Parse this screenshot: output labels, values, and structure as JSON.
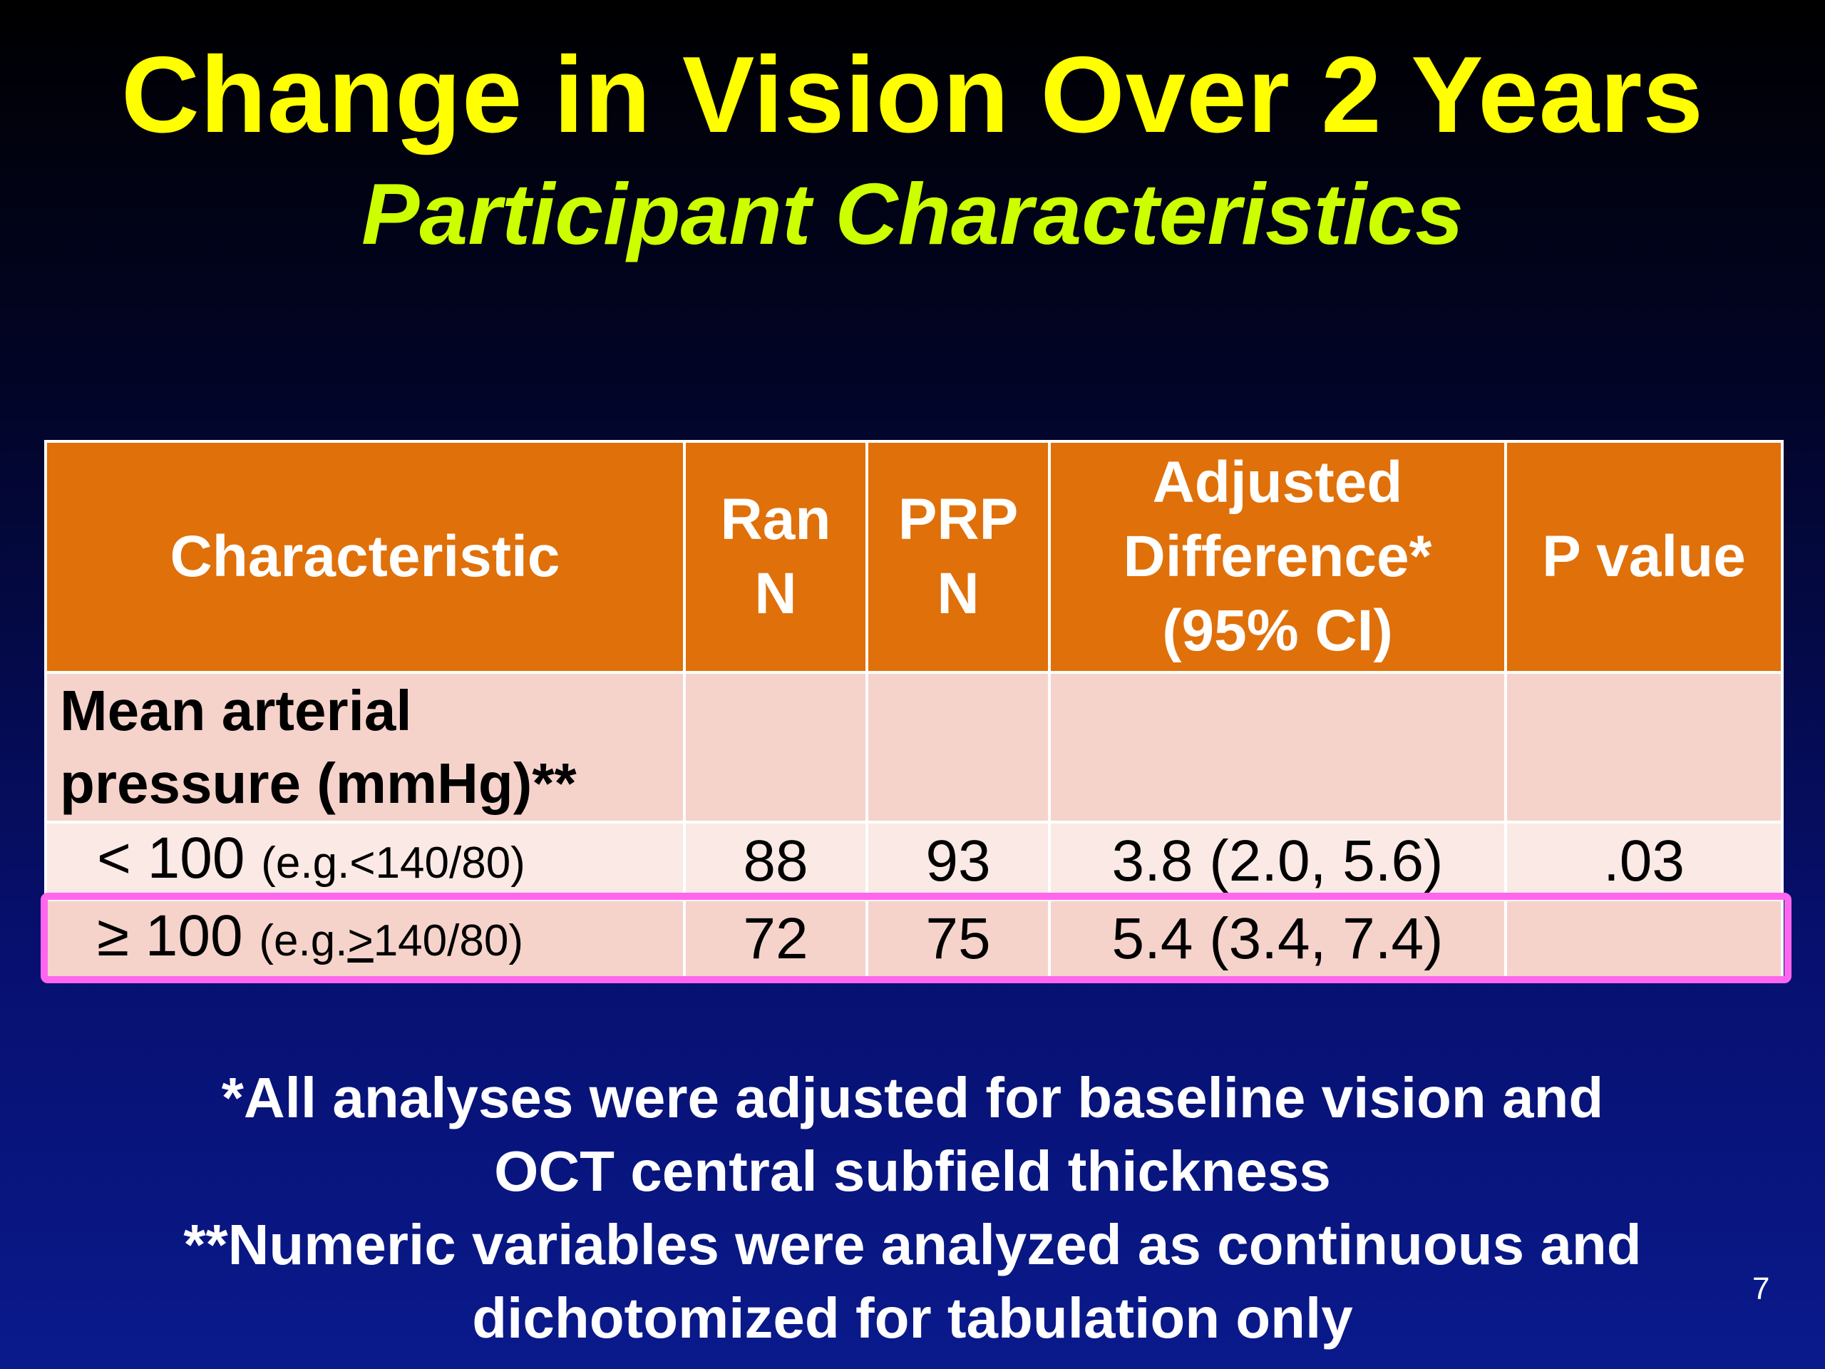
{
  "slide": {
    "title": "Change in Vision Over 2 Years",
    "subtitle": "Participant Characteristics",
    "page_number": "7"
  },
  "table": {
    "headers": {
      "characteristic": "Characteristic",
      "ran_line1": "Ran",
      "ran_line2": "N",
      "prp_line1": "PRP",
      "prp_line2": "N",
      "adj_line1": "Adjusted",
      "adj_line2": "Difference*",
      "adj_line3": "(95% CI)",
      "p_value": "P value"
    },
    "group_label": {
      "line1": "Mean arterial",
      "line2": "pressure (mmHg)**"
    },
    "rows": [
      {
        "symbol": "<",
        "value": " 100 ",
        "example": "(e.g.<140/80)",
        "ran_n": "88",
        "prp_n": "93",
        "adjusted_difference": "3.8 (2.0, 5.6)",
        "p_value": ".03"
      },
      {
        "symbol": "≥",
        "value": " 100 ",
        "example_prefix": "(e.g.",
        "example_symbol": ">",
        "example_suffix": "140/80)",
        "ran_n": "72",
        "prp_n": "75",
        "adjusted_difference": "5.4 (3.4, 7.4)",
        "p_value": ""
      }
    ]
  },
  "footnotes": {
    "line1": "*All analyses were adjusted for baseline vision and",
    "line2": "OCT central subfield thickness",
    "line3": "**Numeric variables were analyzed as continuous and",
    "line4": "dichotomized for tabulation only"
  },
  "colors": {
    "title": "#ffff00",
    "subtitle": "#ccff00",
    "header_bg": "#e0700a",
    "row_dark": "#f5d3ca",
    "row_light": "#fae9e5",
    "highlight": "#ff66ee"
  }
}
